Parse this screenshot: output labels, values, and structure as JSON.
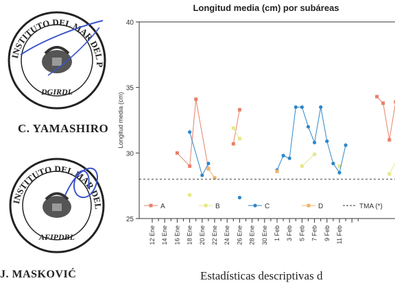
{
  "stamp_top": {
    "ring_text": "INSTITUTO DEL MAR DEL PERU",
    "bottom_text": "DGIRDL",
    "signature_name": "C. YAMASHIRO"
  },
  "stamp_bottom": {
    "ring_text": "INSTITUTO DEL MAR DEL PERU",
    "bottom_text": "AFIPDBL",
    "signature_name": "J. MASKOVIĆ"
  },
  "colors": {
    "A": "#e8806a",
    "B": "#e6e88a",
    "C": "#2e86c8",
    "D": "#f2b267",
    "ink_stamp": "#222222",
    "ink_signature": "#3a54c8"
  },
  "chart_data": {
    "type": "line",
    "title": "Longitud media (cm) por subáreas",
    "ylabel": "Longitud media (cm)",
    "xlabel": "",
    "ylim": [
      25,
      40
    ],
    "yticks": [
      25,
      30,
      35,
      40
    ],
    "grid": false,
    "legend_position": "bottom",
    "categories": [
      "12 Ene",
      "14 Ene",
      "16 Ene",
      "18 Ene",
      "20 Ene",
      "22 Ene",
      "24 Ene",
      "26 Ene",
      "28 Ene",
      "30 Ene",
      "1 Feb",
      "3 Feb",
      "5 Feb",
      "7 Feb",
      "9 Feb",
      "11 Feb"
    ],
    "series": [
      {
        "name": "A",
        "points": [
          [
            4,
            30
          ],
          [
            6,
            29
          ],
          [
            7,
            34.1
          ],
          [
            9,
            28.8
          ],
          [
            13,
            30.7
          ],
          [
            14,
            33.3
          ],
          [
            36,
            34.3
          ],
          [
            37,
            33.8
          ],
          [
            38,
            31
          ],
          [
            39,
            33.9
          ]
        ]
      },
      {
        "name": "B",
        "points": [
          [
            6,
            26.8
          ],
          [
            13,
            31.9
          ],
          [
            14,
            31.1
          ],
          [
            24,
            29
          ],
          [
            26,
            29.9
          ],
          [
            30,
            29
          ],
          [
            38,
            28.4
          ],
          [
            40,
            30.2
          ]
        ]
      },
      {
        "name": "C",
        "points": [
          [
            6,
            31.6
          ],
          [
            8,
            28.3
          ],
          [
            9,
            29.2
          ],
          [
            14,
            26.6
          ],
          [
            20,
            28.7
          ],
          [
            21,
            29.8
          ],
          [
            22,
            29.6
          ],
          [
            23,
            33.5
          ],
          [
            24,
            33.5
          ],
          [
            25,
            32
          ],
          [
            26,
            30.8
          ],
          [
            27,
            33.5
          ],
          [
            28,
            30.9
          ],
          [
            29,
            29.2
          ],
          [
            30,
            28.5
          ],
          [
            31,
            30.6
          ]
        ]
      },
      {
        "name": "D",
        "points": [
          [
            9,
            28.8
          ],
          [
            10,
            28.1
          ],
          [
            20,
            28.6
          ]
        ]
      },
      {
        "name": "TMA (*)",
        "y": 28,
        "style": "dashed"
      }
    ],
    "x_index_per_label": 2.0
  },
  "page_text": {
    "fragment": "Estadísticas descriptivas d"
  }
}
